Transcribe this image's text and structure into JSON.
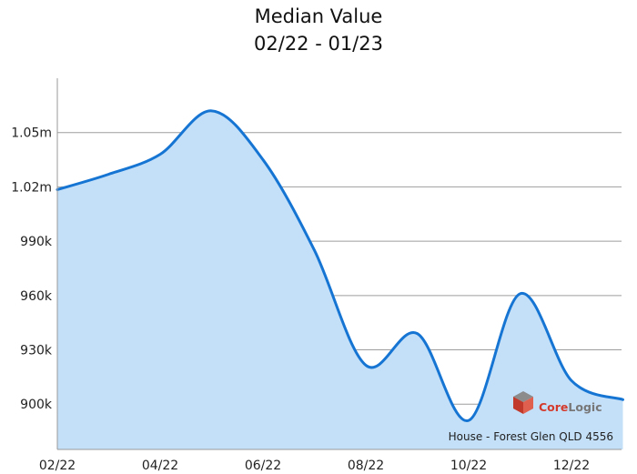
{
  "chart_data": {
    "type": "area",
    "title": "Median Value",
    "subtitle": "02/22 - 01/23",
    "xlabel": "",
    "ylabel": "",
    "x": [
      "02/22",
      "03/22",
      "04/22",
      "05/22",
      "06/22",
      "07/22",
      "08/22",
      "09/22",
      "10/22",
      "11/22",
      "12/22",
      "01/23"
    ],
    "x_ticks": [
      "02/22",
      "04/22",
      "06/22",
      "08/22",
      "10/22",
      "12/22"
    ],
    "y_ticks": [
      {
        "value": 900000,
        "label": "900k"
      },
      {
        "value": 930000,
        "label": "930k"
      },
      {
        "value": 960000,
        "label": "960k"
      },
      {
        "value": 990000,
        "label": "990k"
      },
      {
        "value": 1020000,
        "label": "1.02m"
      },
      {
        "value": 1050000,
        "label": "1.05m"
      }
    ],
    "ylim": [
      875000,
      1080000
    ],
    "series": [
      {
        "values": [
          1018500,
          1027000,
          1038000,
          1062000,
          1035000,
          985000,
          921500,
          939000,
          891000,
          961000,
          913000,
          902500
        ]
      }
    ],
    "grid": "horizontal",
    "colors": {
      "line": "#1675D3",
      "fill": "#C4E0F9",
      "grid": "#9E9E9E",
      "axis": "#9A9A9A"
    },
    "annotation": "House - Forest Glen QLD 4556",
    "watermark": "CoreLogic"
  }
}
